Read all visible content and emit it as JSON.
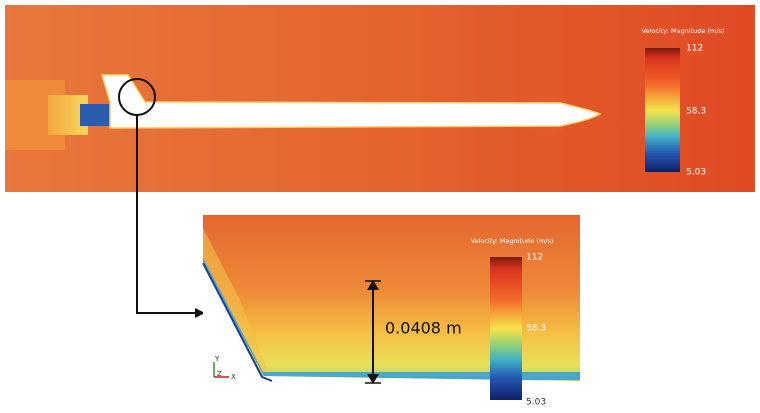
{
  "top_panel": {
    "colorbar": {
      "title": "Velocity: Magnitude (m/s)",
      "max": 112,
      "mid": 58.3,
      "min": 5.03
    }
  },
  "detail_panel": {
    "colorbar": {
      "title": "Velocity: Magnitude (m/s)",
      "max": 112,
      "mid": 58.3,
      "min": 5.03
    },
    "dimension": "0.0408 m",
    "axes": {
      "y": "Y",
      "z": "Z",
      "x": "X"
    }
  }
}
